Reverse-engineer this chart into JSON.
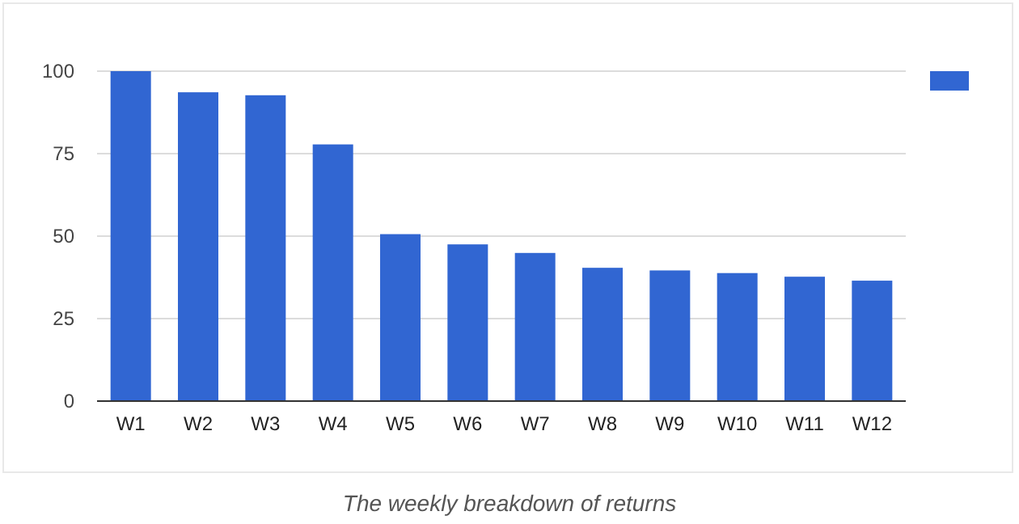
{
  "chart_data": {
    "type": "bar",
    "categories": [
      "W1",
      "W2",
      "W3",
      "W4",
      "W5",
      "W6",
      "W7",
      "W8",
      "W9",
      "W10",
      "W11",
      "W12"
    ],
    "series": [
      {
        "color": "#3166d2",
        "values": [
          100,
          93.6,
          92.7,
          77.8,
          50.6,
          47.5,
          44.9,
          40.4,
          39.6,
          38.8,
          37.7,
          36.5
        ]
      }
    ],
    "ylim": [
      0,
      100
    ],
    "yticks": [
      0,
      25,
      50,
      75,
      100
    ],
    "grid": "y",
    "annotations": [
      "The weekly breakdown of returns"
    ]
  }
}
